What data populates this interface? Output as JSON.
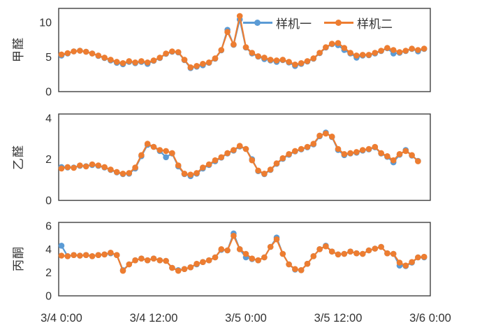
{
  "legend": {
    "items": [
      {
        "label": "样机一",
        "color": "#5B9BD5"
      },
      {
        "label": "样机二",
        "color": "#ED7D31"
      }
    ]
  },
  "colors": {
    "series_blue": "#5B9BD5",
    "series_orange": "#ED7D31",
    "axis_frame": "#404040",
    "text": "#333333",
    "background": "#ffffff"
  },
  "chart_data": [
    {
      "type": "line",
      "title": "",
      "ylabel": "甲醛",
      "yticks": [
        0,
        5,
        10
      ],
      "ylim": [
        0,
        12
      ],
      "grid": false,
      "legend_position": "top-right-inside",
      "series": [
        {
          "name": "样机一",
          "color": "#5B9BD5",
          "values": [
            5.2,
            5.5,
            5.8,
            5.9,
            5.75,
            5.5,
            5.15,
            4.85,
            4.5,
            4.15,
            3.95,
            4.3,
            4.1,
            4.3,
            4.0,
            4.45,
            4.85,
            5.45,
            5.75,
            5.65,
            4.55,
            3.4,
            3.6,
            3.8,
            4.15,
            4.75,
            5.95,
            8.9,
            6.75,
            10.4,
            6.35,
            5.5,
            5.05,
            4.7,
            4.5,
            4.3,
            4.55,
            4.2,
            3.7,
            4.0,
            4.35,
            4.75,
            5.55,
            6.35,
            6.85,
            6.7,
            6.0,
            5.5,
            4.9,
            5.2,
            5.25,
            5.5,
            5.85,
            6.25,
            5.5,
            5.6,
            5.85,
            6.15,
            5.8,
            6.15
          ]
        },
        {
          "name": "样机二",
          "color": "#ED7D31",
          "values": [
            5.35,
            5.55,
            5.8,
            5.9,
            5.75,
            5.5,
            5.2,
            4.9,
            4.6,
            4.3,
            4.1,
            4.4,
            4.2,
            4.4,
            4.2,
            4.5,
            4.9,
            5.5,
            5.8,
            5.7,
            4.6,
            3.5,
            3.7,
            4.0,
            4.2,
            4.8,
            6.0,
            8.6,
            6.8,
            10.9,
            6.4,
            5.6,
            5.1,
            4.9,
            4.6,
            4.5,
            4.6,
            4.3,
            3.9,
            4.1,
            4.4,
            4.8,
            5.6,
            6.4,
            6.9,
            7.0,
            6.3,
            5.6,
            5.2,
            5.3,
            5.3,
            5.6,
            5.9,
            6.3,
            6.0,
            5.7,
            5.9,
            6.2,
            6.0,
            6.2
          ]
        }
      ]
    },
    {
      "type": "line",
      "title": "",
      "ylabel": "乙醛",
      "yticks": [
        0,
        2,
        4
      ],
      "ylim": [
        0,
        4.2
      ],
      "grid": false,
      "series": [
        {
          "name": "样机一",
          "color": "#5B9BD5",
          "values": [
            1.62,
            1.6,
            1.6,
            1.68,
            1.66,
            1.72,
            1.68,
            1.6,
            1.48,
            1.36,
            1.28,
            1.3,
            1.55,
            2.15,
            2.7,
            2.6,
            2.4,
            2.1,
            2.28,
            1.65,
            1.28,
            1.18,
            1.3,
            1.55,
            1.72,
            1.9,
            2.08,
            2.28,
            2.42,
            2.62,
            2.5,
            2.0,
            1.42,
            1.28,
            1.48,
            1.78,
            2.02,
            2.22,
            2.38,
            2.48,
            2.58,
            2.72,
            3.12,
            3.3,
            3.08,
            2.45,
            2.2,
            2.28,
            2.32,
            2.42,
            2.48,
            2.58,
            2.28,
            2.12,
            1.85,
            2.22,
            2.45,
            2.18,
            1.92
          ]
        },
        {
          "name": "样机二",
          "color": "#ED7D31",
          "values": [
            1.55,
            1.62,
            1.58,
            1.7,
            1.65,
            1.75,
            1.7,
            1.62,
            1.5,
            1.38,
            1.3,
            1.33,
            1.6,
            2.2,
            2.75,
            2.6,
            2.45,
            2.4,
            2.3,
            1.7,
            1.3,
            1.25,
            1.33,
            1.6,
            1.75,
            1.95,
            2.1,
            2.3,
            2.45,
            2.65,
            2.5,
            1.95,
            1.45,
            1.3,
            1.5,
            1.8,
            2.05,
            2.25,
            2.4,
            2.5,
            2.6,
            2.75,
            3.15,
            3.25,
            3.1,
            2.5,
            2.25,
            2.3,
            2.35,
            2.45,
            2.5,
            2.6,
            2.3,
            2.15,
            1.95,
            2.25,
            2.4,
            2.2,
            1.9
          ]
        }
      ]
    },
    {
      "type": "line",
      "title": "",
      "ylabel": "丙酮",
      "yticks": [
        0,
        2,
        4,
        6
      ],
      "ylim": [
        0,
        6.3
      ],
      "grid": false,
      "x_ticklabels": [
        "3/4 0:00",
        "3/4 12:00",
        "3/5 0:00",
        "3/5 12:00",
        "3/6 0:00"
      ],
      "series": [
        {
          "name": "样机一",
          "color": "#5B9BD5",
          "values": [
            4.3,
            3.4,
            3.5,
            3.45,
            3.5,
            3.4,
            3.5,
            3.55,
            3.65,
            3.5,
            2.2,
            2.7,
            3.05,
            3.2,
            3.05,
            3.2,
            3.05,
            3.0,
            2.4,
            2.2,
            2.3,
            2.45,
            2.7,
            2.9,
            3.05,
            3.3,
            3.95,
            3.9,
            5.35,
            4.0,
            3.3,
            3.15,
            3.05,
            3.3,
            4.2,
            5.0,
            3.6,
            2.7,
            2.25,
            2.2,
            2.75,
            3.4,
            4.0,
            4.3,
            3.8,
            3.55,
            3.6,
            3.8,
            3.65,
            3.6,
            3.9,
            4.05,
            4.2,
            3.65,
            3.6,
            2.6,
            2.55,
            2.85,
            3.3,
            3.3
          ]
        },
        {
          "name": "样机二",
          "color": "#ED7D31",
          "values": [
            3.45,
            3.4,
            3.5,
            3.45,
            3.5,
            3.4,
            3.5,
            3.55,
            3.7,
            3.5,
            2.15,
            2.7,
            3.05,
            3.2,
            3.05,
            3.2,
            3.05,
            3.0,
            2.4,
            2.15,
            2.3,
            2.45,
            2.75,
            2.9,
            3.05,
            3.3,
            4.0,
            3.9,
            5.15,
            4.0,
            3.6,
            3.2,
            3.05,
            3.3,
            4.2,
            4.85,
            3.6,
            2.7,
            2.3,
            2.2,
            2.75,
            3.4,
            4.0,
            4.25,
            3.8,
            3.55,
            3.6,
            3.8,
            3.65,
            3.6,
            3.9,
            4.05,
            4.2,
            3.65,
            3.6,
            2.85,
            2.6,
            2.9,
            3.3,
            3.35
          ]
        }
      ]
    }
  ]
}
